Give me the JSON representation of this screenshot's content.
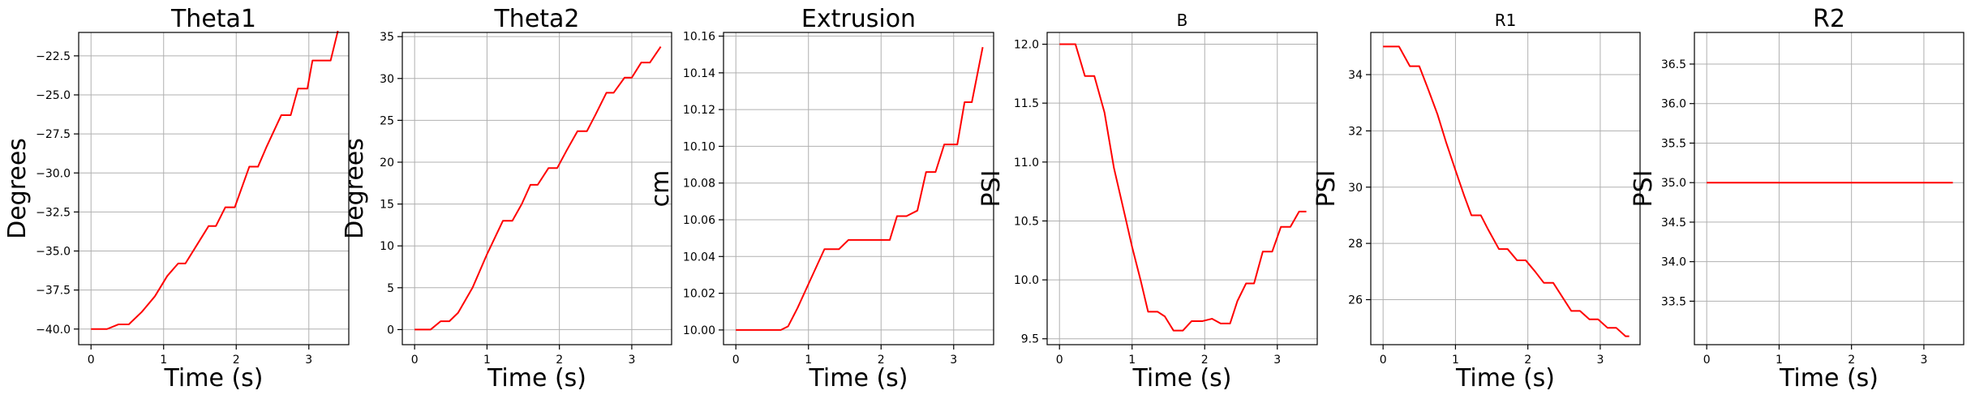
{
  "chart_data": [
    {
      "type": "line",
      "title": "Theta1",
      "xlabel": "Time (s)",
      "ylabel": "Degrees",
      "xlim": [
        -0.17,
        3.55
      ],
      "ylim": [
        -41.0,
        -21.0
      ],
      "xticks": [
        0,
        1,
        2,
        3
      ],
      "xtick_labels": [
        "0",
        "1",
        "2",
        "3"
      ],
      "yticks": [
        -40.0,
        -37.5,
        -35.0,
        -32.5,
        -30.0,
        -27.5,
        -25.0,
        -22.5
      ],
      "ytick_labels": [
        "−40.0",
        "−37.5",
        "−35.0",
        "−32.5",
        "−30.0",
        "−27.5",
        "−25.0",
        "−22.5"
      ],
      "grid": true,
      "color": "#ff0000",
      "x": [
        0.0,
        0.22,
        0.38,
        0.52,
        0.7,
        0.88,
        1.05,
        1.2,
        1.3,
        1.42,
        1.62,
        1.72,
        1.85,
        1.98,
        2.18,
        2.3,
        2.42,
        2.62,
        2.75,
        2.85,
        2.98,
        3.05,
        3.2,
        3.3,
        3.4
      ],
      "y": [
        -40.0,
        -40.0,
        -39.7,
        -39.7,
        -38.9,
        -37.9,
        -36.6,
        -35.8,
        -35.8,
        -34.9,
        -33.4,
        -33.4,
        -32.2,
        -32.2,
        -29.6,
        -29.6,
        -28.3,
        -26.3,
        -26.3,
        -24.6,
        -24.6,
        -22.8,
        -22.8,
        -22.8,
        -20.9
      ]
    },
    {
      "type": "line",
      "title": "Theta2",
      "xlabel": "Time (s)",
      "ylabel": "Degrees",
      "xlim": [
        -0.17,
        3.55
      ],
      "ylim": [
        -1.8,
        35.5
      ],
      "xticks": [
        0,
        1,
        2,
        3
      ],
      "xtick_labels": [
        "0",
        "1",
        "2",
        "3"
      ],
      "yticks": [
        0,
        5,
        10,
        15,
        20,
        25,
        30,
        35
      ],
      "ytick_labels": [
        "0",
        "5",
        "10",
        "15",
        "20",
        "25",
        "30",
        "35"
      ],
      "grid": true,
      "color": "#ff0000",
      "x": [
        0.0,
        0.22,
        0.36,
        0.48,
        0.6,
        0.8,
        1.0,
        1.22,
        1.35,
        1.48,
        1.6,
        1.7,
        1.85,
        1.97,
        2.1,
        2.25,
        2.38,
        2.5,
        2.65,
        2.75,
        2.9,
        3.0,
        3.13,
        3.25,
        3.4
      ],
      "y": [
        0.0,
        0.0,
        1.0,
        1.0,
        2.0,
        5.0,
        9.0,
        13.0,
        13.0,
        15.0,
        17.3,
        17.3,
        19.3,
        19.3,
        21.4,
        23.7,
        23.7,
        25.7,
        28.3,
        28.3,
        30.1,
        30.1,
        31.9,
        31.9,
        33.8
      ]
    },
    {
      "type": "line",
      "title": "Extrusion",
      "xlabel": "Time (s)",
      "ylabel": "cm",
      "xlim": [
        -0.17,
        3.55
      ],
      "ylim": [
        9.992,
        10.162
      ],
      "xticks": [
        0,
        1,
        2,
        3
      ],
      "xtick_labels": [
        "0",
        "1",
        "2",
        "3"
      ],
      "yticks": [
        10.0,
        10.02,
        10.04,
        10.06,
        10.08,
        10.1,
        10.12,
        10.14,
        10.16
      ],
      "ytick_labels": [
        "10.00",
        "10.02",
        "10.04",
        "10.06",
        "10.08",
        "10.10",
        "10.12",
        "10.14",
        "10.16"
      ],
      "grid": true,
      "color": "#ff0000",
      "x": [
        0.0,
        0.62,
        0.72,
        0.85,
        1.0,
        1.22,
        1.42,
        1.55,
        1.67,
        2.0,
        2.12,
        2.22,
        2.35,
        2.5,
        2.62,
        2.75,
        2.87,
        2.95,
        3.05,
        3.15,
        3.25,
        3.4
      ],
      "y": [
        10.0,
        10.0,
        10.002,
        10.012,
        10.025,
        10.044,
        10.044,
        10.049,
        10.049,
        10.049,
        10.049,
        10.062,
        10.062,
        10.065,
        10.086,
        10.086,
        10.101,
        10.101,
        10.101,
        10.124,
        10.124,
        10.154
      ]
    },
    {
      "type": "line",
      "title": "B",
      "xlabel": "Time (s)",
      "ylabel": "PSI",
      "xlim": [
        -0.17,
        3.55
      ],
      "ylim": [
        9.45,
        12.1
      ],
      "xticks": [
        0,
        1,
        2,
        3
      ],
      "xtick_labels": [
        "0",
        "1",
        "2",
        "3"
      ],
      "yticks": [
        9.5,
        10.0,
        10.5,
        11.0,
        11.5,
        12.0
      ],
      "ytick_labels": [
        "9.5",
        "10.0",
        "10.5",
        "11.0",
        "11.5",
        "12.0"
      ],
      "grid": true,
      "color": "#ff0000",
      "x": [
        0.0,
        0.22,
        0.35,
        0.48,
        0.62,
        0.75,
        0.9,
        1.0,
        1.12,
        1.22,
        1.35,
        1.45,
        1.57,
        1.7,
        1.82,
        1.97,
        2.1,
        2.22,
        2.35,
        2.45,
        2.57,
        2.68,
        2.8,
        2.93,
        3.05,
        3.18,
        3.3,
        3.4
      ],
      "y": [
        12.0,
        12.0,
        11.73,
        11.73,
        11.42,
        10.95,
        10.55,
        10.28,
        9.99,
        9.73,
        9.73,
        9.69,
        9.57,
        9.57,
        9.65,
        9.65,
        9.67,
        9.63,
        9.63,
        9.82,
        9.97,
        9.97,
        10.24,
        10.24,
        10.45,
        10.45,
        10.58,
        10.58
      ]
    },
    {
      "type": "line",
      "title": "R1",
      "xlabel": "Time (s)",
      "ylabel": "PSI",
      "xlim": [
        -0.17,
        3.55
      ],
      "ylim": [
        24.4,
        35.5
      ],
      "xticks": [
        0,
        1,
        2,
        3
      ],
      "xtick_labels": [
        "0",
        "1",
        "2",
        "3"
      ],
      "yticks": [
        26,
        28,
        30,
        32,
        34
      ],
      "ytick_labels": [
        "26",
        "28",
        "30",
        "32",
        "34"
      ],
      "grid": true,
      "color": "#ff0000",
      "x": [
        0.0,
        0.22,
        0.37,
        0.5,
        0.62,
        0.75,
        0.87,
        1.0,
        1.12,
        1.22,
        1.35,
        1.45,
        1.6,
        1.72,
        1.85,
        1.97,
        2.1,
        2.22,
        2.35,
        2.45,
        2.6,
        2.72,
        2.85,
        2.97,
        3.1,
        3.22,
        3.35,
        3.4
      ],
      "y": [
        35.0,
        35.0,
        34.3,
        34.3,
        33.5,
        32.6,
        31.6,
        30.6,
        29.7,
        29.0,
        29.0,
        28.5,
        27.8,
        27.8,
        27.4,
        27.4,
        27.0,
        26.6,
        26.6,
        26.2,
        25.6,
        25.6,
        25.3,
        25.3,
        25.0,
        25.0,
        24.7,
        24.7
      ]
    },
    {
      "type": "line",
      "title": "R2",
      "xlabel": "Time (s)",
      "ylabel": "PSI",
      "xlim": [
        -0.17,
        3.55
      ],
      "ylim": [
        32.95,
        36.9
      ],
      "xticks": [
        0,
        1,
        2,
        3
      ],
      "xtick_labels": [
        "0",
        "1",
        "2",
        "3"
      ],
      "yticks": [
        33.5,
        34.0,
        34.5,
        35.0,
        35.5,
        36.0,
        36.5
      ],
      "ytick_labels": [
        "33.5",
        "34.0",
        "34.5",
        "35.0",
        "35.5",
        "36.0",
        "36.5"
      ],
      "grid": true,
      "color": "#ff0000",
      "x": [
        0.0,
        3.4
      ],
      "y": [
        35.0,
        35.0
      ]
    }
  ]
}
